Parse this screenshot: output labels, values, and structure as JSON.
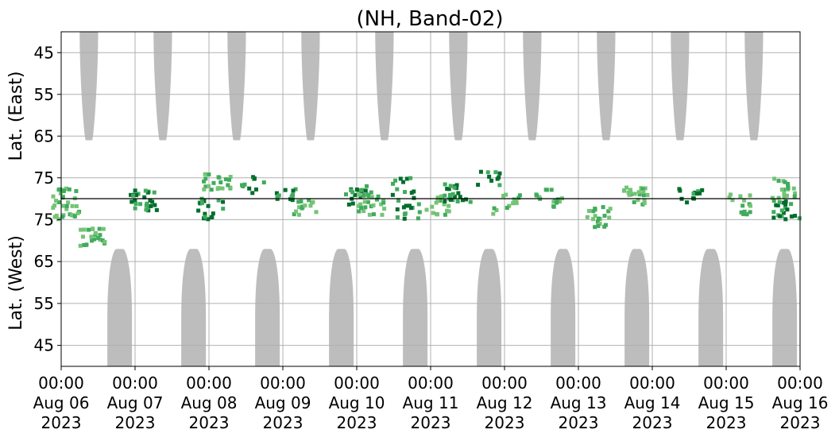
{
  "chart_data": {
    "type": "heatmap",
    "title": "(NH, Band-02)",
    "ylabel_top": "Lat. (East)",
    "ylabel_bottom": "Lat. (West)",
    "xlabel": "",
    "x_range": [
      "2023-08-06 00:00",
      "2023-08-16 00:00"
    ],
    "x_tick_labels": [
      [
        "00:00",
        "Aug 06",
        "2023"
      ],
      [
        "00:00",
        "Aug 07",
        "2023"
      ],
      [
        "00:00",
        "Aug 08",
        "2023"
      ],
      [
        "00:00",
        "Aug 09",
        "2023"
      ],
      [
        "00:00",
        "Aug 10",
        "2023"
      ],
      [
        "00:00",
        "Aug 11",
        "2023"
      ],
      [
        "00:00",
        "Aug 12",
        "2023"
      ],
      [
        "00:00",
        "Aug 13",
        "2023"
      ],
      [
        "00:00",
        "Aug 14",
        "2023"
      ],
      [
        "00:00",
        "Aug 15",
        "2023"
      ],
      [
        "00:00",
        "Aug 16",
        "2023"
      ]
    ],
    "y_tick_labels_top": [
      "45",
      "55",
      "65",
      "75"
    ],
    "y_tick_labels_bottom": [
      "75",
      "65",
      "55",
      "45"
    ],
    "grid": true,
    "colors": {
      "sunlit": "#bdbdbd",
      "activity_light": "#74c476",
      "activity_mid": "#41ab5d",
      "activity_dark": "#006d2c",
      "divider": "#000000"
    },
    "east_sunlit_windows": [
      [
        "2023-08-06 06:00",
        "2023-08-06 12:00"
      ],
      [
        "2023-08-07 06:00",
        "2023-08-07 12:00"
      ],
      [
        "2023-08-08 06:00",
        "2023-08-08 12:00"
      ],
      [
        "2023-08-09 06:00",
        "2023-08-09 12:00"
      ],
      [
        "2023-08-10 06:00",
        "2023-08-10 12:00"
      ],
      [
        "2023-08-11 06:00",
        "2023-08-11 12:00"
      ],
      [
        "2023-08-12 06:00",
        "2023-08-12 12:00"
      ],
      [
        "2023-08-13 06:00",
        "2023-08-13 12:00"
      ],
      [
        "2023-08-14 06:00",
        "2023-08-14 12:00"
      ],
      [
        "2023-08-15 06:00",
        "2023-08-15 12:00"
      ]
    ],
    "west_sunlit_windows": [
      [
        "2023-08-06 15:00",
        "2023-08-06 23:00"
      ],
      [
        "2023-08-07 15:00",
        "2023-08-07 23:00"
      ],
      [
        "2023-08-08 15:00",
        "2023-08-08 23:00"
      ],
      [
        "2023-08-09 15:00",
        "2023-08-09 23:00"
      ],
      [
        "2023-08-10 15:00",
        "2023-08-10 23:00"
      ],
      [
        "2023-08-11 15:00",
        "2023-08-11 23:00"
      ],
      [
        "2023-08-12 15:00",
        "2023-08-12 23:00"
      ],
      [
        "2023-08-13 15:00",
        "2023-08-13 23:00"
      ],
      [
        "2023-08-14 15:00",
        "2023-08-14 23:00"
      ],
      [
        "2023-08-15 15:00",
        "2023-08-15 23:00"
      ]
    ],
    "activity_clusters": [
      {
        "time": "2023-08-06 00:30",
        "lat": 79,
        "side": "East",
        "level": 2
      },
      {
        "time": "2023-08-06 01:00",
        "lat": 78,
        "side": "West",
        "level": 2
      },
      {
        "time": "2023-08-06 09:30",
        "lat": 71,
        "side": "West",
        "level": 2
      },
      {
        "time": "2023-08-07 02:00",
        "lat": 79,
        "side": "East",
        "level": 3
      },
      {
        "time": "2023-08-07 03:00",
        "lat": 80,
        "side": "East",
        "level": 3
      },
      {
        "time": "2023-08-08 00:00",
        "lat": 78,
        "side": "West",
        "level": 3
      },
      {
        "time": "2023-08-08 02:00",
        "lat": 75,
        "side": "East",
        "level": 2
      },
      {
        "time": "2023-08-08 14:00",
        "lat": 76,
        "side": "East",
        "level": 3
      },
      {
        "time": "2023-08-09 01:00",
        "lat": 78,
        "side": "East",
        "level": 3
      },
      {
        "time": "2023-08-09 06:00",
        "lat": 79,
        "side": "West",
        "level": 2
      },
      {
        "time": "2023-08-10 00:00",
        "lat": 79,
        "side": "East",
        "level": 3
      },
      {
        "time": "2023-08-10 04:00",
        "lat": 79,
        "side": "West",
        "level": 2
      },
      {
        "time": "2023-08-10 14:00",
        "lat": 77,
        "side": "East",
        "level": 3
      },
      {
        "time": "2023-08-10 16:00",
        "lat": 78,
        "side": "West",
        "level": 3
      },
      {
        "time": "2023-08-11 02:00",
        "lat": 79,
        "side": "West",
        "level": 2
      },
      {
        "time": "2023-08-11 08:00",
        "lat": 78,
        "side": "East",
        "level": 3
      },
      {
        "time": "2023-08-11 18:00",
        "lat": 75,
        "side": "East",
        "level": 3
      },
      {
        "time": "2023-08-12 00:00",
        "lat": 79,
        "side": "West",
        "level": 2
      },
      {
        "time": "2023-08-12 14:00",
        "lat": 79,
        "side": "East",
        "level": 2
      },
      {
        "time": "2023-08-13 06:00",
        "lat": 76,
        "side": "West",
        "level": 2
      },
      {
        "time": "2023-08-13 18:00",
        "lat": 79,
        "side": "East",
        "level": 2
      },
      {
        "time": "2023-08-14 12:00",
        "lat": 79,
        "side": "East",
        "level": 3
      },
      {
        "time": "2023-08-15 04:00",
        "lat": 79,
        "side": "West",
        "level": 2
      },
      {
        "time": "2023-08-15 18:00",
        "lat": 77,
        "side": "East",
        "level": 2
      },
      {
        "time": "2023-08-15 19:00",
        "lat": 78,
        "side": "West",
        "level": 3
      }
    ]
  }
}
